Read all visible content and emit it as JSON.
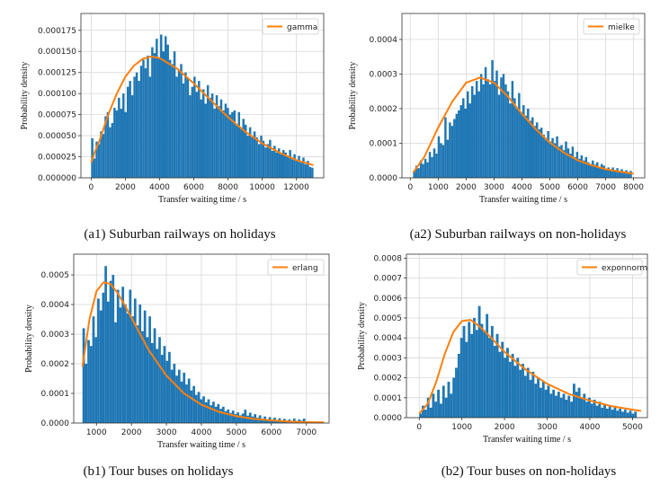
{
  "figure": {
    "captions": [
      "(a1) Suburban railways on holidays",
      "(a2) Suburban railways on non-holidays",
      "(b1) Tour buses on holidays",
      "(b2) Tour buses on non-holidays"
    ]
  },
  "colors": {
    "bars": "#1f77b4",
    "fit": "#ff7f0e",
    "grid": "#d8d8d8",
    "axis": "#333333"
  },
  "chart_data": [
    {
      "type": "bar",
      "subtype": "histogram-with-fit",
      "caption": "(a1) Suburban railways on holidays",
      "xlabel": "Transfer waiting time / s",
      "ylabel": "Probability density",
      "xlim": [
        -600,
        13600
      ],
      "ylim": [
        0,
        0.000195
      ],
      "xticks": [
        0,
        2000,
        4000,
        6000,
        8000,
        10000,
        12000
      ],
      "xtick_labels": [
        "0",
        "2000",
        "4000",
        "6000",
        "8000",
        "10000",
        "12000"
      ],
      "yticks": [
        0,
        2.5e-05,
        5e-05,
        7.5e-05,
        0.0001,
        0.000125,
        0.00015,
        0.000175
      ],
      "ytick_labels": [
        "0.000000",
        "0.000025",
        "0.000050",
        "0.000075",
        "0.000100",
        "0.000125",
        "0.000150",
        "0.000175"
      ],
      "grid": true,
      "legend": {
        "position": "top-right",
        "entries": [
          "gamma"
        ]
      },
      "bin_start": 0,
      "bin_width": 130,
      "bin_values": [
        4.7e-05,
        2.3e-05,
        4.3e-05,
        4e-05,
        5.5e-05,
        5.2e-05,
        7.3e-05,
        7.8e-05,
        6e-05,
        6.5e-05,
        8.3e-05,
        8e-05,
        9.5e-05,
        8.2e-05,
        0.0001,
        7.8e-05,
        0.000108,
        0.000115,
        9.8e-05,
        0.00012,
        0.000125,
        0.000115,
        0.000133,
        0.00014,
        0.00013,
        0.000145,
        0.00012,
        0.000155,
        0.000148,
        0.000165,
        0.000142,
        0.00017,
        0.00015,
        0.000168,
        0.000158,
        0.00014,
        0.000135,
        0.00015,
        0.00012,
        0.000128,
        0.000135,
        0.000112,
        0.000125,
        0.000118,
        9.8e-05,
        0.000108,
        0.00012,
        0.000102,
        0.000115,
        9.3e-05,
        0.000105,
        8.8e-05,
        0.00011,
        9.5e-05,
        0.0001,
        8.2e-05,
        9.8e-05,
        8.5e-05,
        9.3e-05,
        8e-05,
        8.8e-05,
        8.3e-05,
        7.5e-05,
        7.8e-05,
        8e-05,
        6.2e-05,
        7.8e-05,
        5.8e-05,
        7e-05,
        6.3e-05,
        5e-05,
        6e-05,
        4.8e-05,
        5.5e-05,
        4.8e-05,
        4e-05,
        5e-05,
        4.4e-05,
        3.6e-05,
        4e-05,
        4.5e-05,
        3.2e-05,
        3.8e-05,
        3e-05,
        3.5e-05,
        2.8e-05,
        3.3e-05,
        3e-05,
        2.5e-05,
        3.3e-05,
        2.2e-05,
        2.8e-05,
        2e-05,
        2.6e-05,
        1.8e-05,
        2.4e-05,
        1.6e-05,
        2e-05,
        1.3e-05,
        1.2e-05
      ],
      "fit": {
        "name": "gamma",
        "x": [
          0,
          200,
          500,
          1000,
          1500,
          2000,
          2500,
          3000,
          3500,
          4000,
          5000,
          6000,
          7000,
          8000,
          9000,
          10000,
          11000,
          12000,
          13000
        ],
        "y": [
          1.8e-05,
          3e-05,
          4.5e-05,
          7.5e-05,
          0.0001,
          0.00012,
          0.000133,
          0.000141,
          0.000144,
          0.000142,
          0.00013,
          0.000112,
          9.2e-05,
          7.2e-05,
          5.5e-05,
          4.1e-05,
          3e-05,
          2.1e-05,
          1.5e-05
        ]
      }
    },
    {
      "type": "bar",
      "subtype": "histogram-with-fit",
      "caption": "(a2) Suburban railways on non-holidays",
      "xlabel": "Transfer waiting time / s",
      "ylabel": "Probability density",
      "xlim": [
        -300,
        8400
      ],
      "ylim": [
        0,
        0.000475
      ],
      "xticks": [
        0,
        1000,
        2000,
        3000,
        4000,
        5000,
        6000,
        7000,
        8000
      ],
      "xtick_labels": [
        "0",
        "1000",
        "2000",
        "3000",
        "4000",
        "5000",
        "6000",
        "7000",
        "8000"
      ],
      "yticks": [
        0,
        0.0001,
        0.0002,
        0.0003,
        0.0004
      ],
      "ytick_labels": [
        "0.0000",
        "0.0001",
        "0.0002",
        "0.0003",
        "0.0004"
      ],
      "grid": true,
      "legend": {
        "position": "top-right",
        "entries": [
          "mielke"
        ]
      },
      "bin_start": 100,
      "bin_width": 80,
      "bin_values": [
        2e-05,
        3.5e-05,
        2.8e-05,
        5e-05,
        4e-05,
        5.5e-05,
        4.5e-05,
        7.5e-05,
        6e-05,
        8.5e-05,
        7e-05,
        0.00012,
        0.0001,
        9.5e-05,
        0.000175,
        0.00011,
        0.00016,
        0.00015,
        0.00017,
        0.000185,
        0.000195,
        0.00021,
        0.00023,
        0.0002,
        0.00025,
        0.000215,
        0.000265,
        0.00024,
        0.00028,
        0.00025,
        0.0003,
        0.00027,
        0.00032,
        0.000285,
        0.00027,
        0.00034,
        0.00028,
        0.00031,
        0.00024,
        0.00029,
        0.0003,
        0.00027,
        0.00025,
        0.000215,
        0.00028,
        0.00023,
        0.0002,
        0.000245,
        0.00019,
        0.00021,
        0.00018,
        0.0002,
        0.000165,
        0.000175,
        0.00015,
        0.00016,
        0.00014,
        0.000145,
        0.000125,
        0.00011,
        0.000135,
        0.000105,
        0.000115,
        0.0001,
        0.00012,
        9e-05,
        9.5e-05,
        8e-05,
        0.000105,
        8.5e-05,
        7e-05,
        9e-05,
        6e-05,
        7.5e-05,
        5.5e-05,
        6.5e-05,
        5e-05,
        6e-05,
        4.5e-05,
        4e-05,
        5e-05,
        3.8e-05,
        4.5e-05,
        3e-05,
        4e-05,
        3.5e-05,
        2.5e-05,
        3e-05,
        2.2e-05,
        3e-05,
        2e-05,
        2.8e-05,
        1.8e-05,
        2.5e-05,
        1.5e-05,
        2.2e-05,
        1.2e-05,
        2e-05
      ],
      "fit": {
        "name": "mielke",
        "x": [
          100,
          500,
          1000,
          1500,
          2000,
          2500,
          3000,
          3500,
          4000,
          4500,
          5000,
          5500,
          6000,
          6500,
          7000,
          7500,
          8000
        ],
        "y": [
          1.5e-05,
          6e-05,
          0.000145,
          0.00022,
          0.000275,
          0.00029,
          0.000275,
          0.000235,
          0.000185,
          0.00014,
          0.000102,
          7.3e-05,
          5.1e-05,
          3.6e-05,
          2.5e-05,
          1.8e-05,
          1.2e-05
        ]
      }
    },
    {
      "type": "bar",
      "subtype": "histogram-with-fit",
      "caption": "(b1) Tour buses on holidays",
      "xlabel": "Transfer waiting time / s",
      "ylabel": "Probability density",
      "xlim": [
        350,
        7650
      ],
      "ylim": [
        0,
        0.00057
      ],
      "xticks": [
        1000,
        2000,
        3000,
        4000,
        5000,
        6000,
        7000
      ],
      "xtick_labels": [
        "1000",
        "2000",
        "3000",
        "4000",
        "5000",
        "6000",
        "7000"
      ],
      "yticks": [
        0,
        0.0001,
        0.0002,
        0.0003,
        0.0004,
        0.0005
      ],
      "ytick_labels": [
        "0.0000",
        "0.0001",
        "0.0002",
        "0.0003",
        "0.0004",
        "0.0005"
      ],
      "grid": true,
      "legend": {
        "position": "top-right",
        "entries": [
          "erlang"
        ]
      },
      "bin_start": 600,
      "bin_width": 70,
      "bin_values": [
        0.00032,
        0.0002,
        0.00028,
        0.00026,
        0.00036,
        0.00029,
        0.00042,
        0.00038,
        0.00044,
        0.00053,
        0.00041,
        0.00048,
        0.0005,
        0.00034,
        0.00045,
        0.00039,
        0.00046,
        0.0004,
        0.00037,
        0.00045,
        0.00036,
        0.00042,
        0.00033,
        0.0004,
        0.00031,
        0.00038,
        0.00029,
        0.00036,
        0.00027,
        0.00032,
        0.00025,
        0.00029,
        0.00023,
        0.00026,
        0.00021,
        0.00024,
        0.00018,
        0.0002,
        0.00016,
        0.00018,
        0.00014,
        0.00017,
        0.00013,
        0.00015,
        0.00011,
        0.000125,
        9.5e-05,
        0.000105,
        8e-05,
        9e-05,
        7e-05,
        8e-05,
        6e-05,
        7.2e-05,
        5.5e-05,
        6.4e-05,
        4.8e-05,
        5.5e-05,
        4e-05,
        4.6e-05,
        3.4e-05,
        4.2e-05,
        3e-05,
        3.6e-05,
        2.6e-05,
        3.2e-05,
        4.5e-05,
        2.5e-05,
        3.5e-05,
        2.2e-05,
        3e-05,
        1.8e-05,
        2.6e-05,
        1.5e-05,
        2.2e-05,
        1.2e-05,
        2e-05,
        1e-05,
        1.8e-05,
        9e-06,
        1.6e-05,
        8e-06,
        1.4e-05,
        7e-06,
        1.2e-05,
        6e-06,
        1.5e-05,
        5e-06,
        1.2e-05,
        8e-06,
        1.5e-05,
        6e-06
      ],
      "fit": {
        "name": "erlang",
        "x": [
          600,
          800,
          1000,
          1200,
          1400,
          1600,
          1800,
          2000,
          2500,
          3000,
          3500,
          4000,
          4500,
          5000,
          5500,
          6000,
          6500,
          7000,
          7500
        ],
        "y": [
          0.00019,
          0.00035,
          0.000445,
          0.000475,
          0.00047,
          0.00044,
          0.0004,
          0.000355,
          0.000245,
          0.00016,
          0.0001,
          6.2e-05,
          3.8e-05,
          2.3e-05,
          1.4e-05,
          9e-06,
          5e-06,
          3e-06,
          2e-06
        ]
      }
    },
    {
      "type": "bar",
      "subtype": "histogram-with-fit",
      "caption": "(b2) Tour buses on non-holidays",
      "xlabel": "Transfer waiting time / s",
      "ylabel": "Probability density",
      "xlim": [
        -300,
        5350
      ],
      "ylim": [
        0,
        0.00082
      ],
      "xticks": [
        0,
        1000,
        2000,
        3000,
        4000,
        5000
      ],
      "xtick_labels": [
        "0",
        "1000",
        "2000",
        "3000",
        "4000",
        "5000"
      ],
      "yticks": [
        0,
        0.0001,
        0.0002,
        0.0003,
        0.0004,
        0.0005,
        0.0006,
        0.0007,
        0.0008
      ],
      "ytick_labels": [
        "0.0000",
        "0.0001",
        "0.0002",
        "0.0003",
        "0.0004",
        "0.0005",
        "0.0006",
        "0.0007",
        "0.0008"
      ],
      "grid": true,
      "legend": {
        "position": "top-right",
        "entries": [
          "exponnorm"
        ]
      },
      "bin_start": 0,
      "bin_width": 60,
      "bin_values": [
        2e-05,
        6e-05,
        4e-05,
        0.0001,
        5e-05,
        0.00012,
        8e-05,
        0.00014,
        7e-05,
        0.00016,
        0.0001,
        0.00018,
        0.00012,
        0.0002,
        0.00025,
        0.00032,
        0.0004,
        0.00046,
        0.00038,
        0.00048,
        0.00042,
        0.0005,
        0.00044,
        0.00056,
        0.00047,
        0.00043,
        0.00052,
        0.0004,
        0.00046,
        0.00036,
        0.00042,
        0.00033,
        0.00038,
        0.0003,
        0.00035,
        0.00028,
        0.00032,
        0.00026,
        0.0003,
        0.00024,
        0.00027,
        0.00021,
        0.00025,
        0.00019,
        0.00023,
        0.00017,
        0.0002,
        0.00015,
        0.00018,
        0.00014,
        0.00016,
        0.00012,
        0.00014,
        0.00011,
        0.00013,
        0.0001,
        0.00012,
        9e-05,
        0.00011,
        8e-05,
        0.00017,
        0.00013,
        0.00015,
        0.0001,
        0.00012,
        8e-05,
        0.0001,
        7e-05,
        9e-05,
        6e-05,
        8e-05,
        5e-05,
        7e-05,
        4.5e-05,
        6e-05,
        4e-05,
        5.5e-05,
        3.5e-05,
        4.5e-05,
        3e-05,
        4e-05,
        2.5e-05,
        3.5e-05,
        2e-05,
        3e-05
      ],
      "fit": {
        "name": "exponnorm",
        "x": [
          0,
          200,
          400,
          600,
          800,
          1000,
          1200,
          1400,
          1600,
          1800,
          2000,
          2500,
          3000,
          3500,
          4000,
          4500,
          5000,
          5200
        ],
        "y": [
          2e-05,
          7e-05,
          0.00018,
          0.00032,
          0.00043,
          0.000485,
          0.00049,
          0.00046,
          0.00042,
          0.000375,
          0.00033,
          0.00024,
          0.00017,
          0.00012,
          8.5e-05,
          5.8e-05,
          4e-05,
          3.4e-05
        ]
      }
    }
  ]
}
